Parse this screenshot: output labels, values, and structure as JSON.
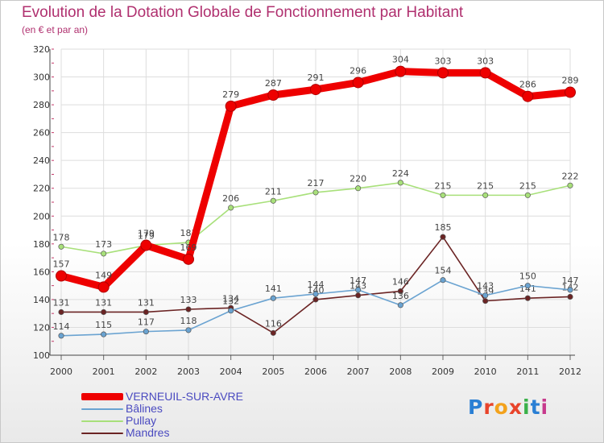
{
  "title": "Evolution de la Dotation Globale de Fonctionnement par Habitant",
  "subtitle": "(en € et par an)",
  "logo": "Proxiti",
  "chart_data": {
    "type": "line",
    "title": "Evolution de la Dotation Globale de Fonctionnement par Habitant",
    "ylabel": "(en € et par an)",
    "xlabel": "",
    "x": [
      "2000",
      "2001",
      "2002",
      "2003",
      "2004",
      "2005",
      "2006",
      "2007",
      "2008",
      "2009",
      "2010",
      "2011",
      "2012"
    ],
    "ylim": [
      100,
      320
    ],
    "ytick_step": 20,
    "grid": true,
    "series": [
      {
        "name": "VERNEUIL-SUR-AVRE",
        "color": "#ee0000",
        "values": [
          157,
          149,
          179,
          169,
          279,
          287,
          291,
          296,
          304,
          303,
          303,
          286,
          289
        ]
      },
      {
        "name": "Bâlines",
        "color": "#6aa3d1",
        "values": [
          114,
          115,
          117,
          118,
          132,
          141,
          144,
          147,
          136,
          154,
          143,
          150,
          147
        ]
      },
      {
        "name": "Pullay",
        "color": "#a8e07a",
        "values": [
          178,
          173,
          179,
          181,
          206,
          211,
          217,
          220,
          224,
          215,
          215,
          215,
          222
        ]
      },
      {
        "name": "Mandres",
        "color": "#6b2424",
        "values": [
          131,
          131,
          131,
          133,
          134,
          116,
          140,
          143,
          146,
          185,
          139,
          141,
          142
        ]
      }
    ]
  }
}
